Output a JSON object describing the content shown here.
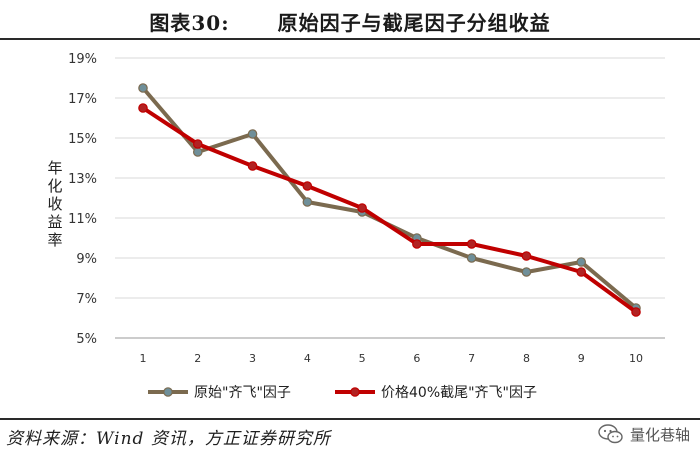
{
  "figure": {
    "label": "图表30:",
    "title": "原始因子与截尾因子分组收益"
  },
  "source": "资料来源：Wind 资讯，方正证券研究所",
  "watermark": "量化巷轴",
  "chart_data": {
    "type": "line",
    "ylabel": "年化收益率",
    "xlabel": "",
    "x": [
      1,
      2,
      3,
      4,
      5,
      6,
      7,
      8,
      9,
      10
    ],
    "ylim": [
      5,
      19
    ],
    "yticks": [
      5,
      7,
      9,
      11,
      13,
      15,
      17,
      19
    ],
    "ytick_labels": [
      "5%",
      "7%",
      "9%",
      "11%",
      "13%",
      "15%",
      "17%",
      "19%"
    ],
    "grid": "horizontal",
    "legend": "bottom",
    "series": [
      {
        "name": "原始\"齐飞\"因子",
        "values": [
          17.5,
          14.3,
          15.2,
          11.8,
          11.3,
          10.0,
          9.0,
          8.3,
          8.8,
          6.5
        ],
        "line_color": "#7b6a4f",
        "marker_color": "#6f8f99"
      },
      {
        "name": "价格40%截尾\"齐飞\"因子",
        "values": [
          16.5,
          14.7,
          13.6,
          12.6,
          11.5,
          9.7,
          9.7,
          9.1,
          8.3,
          6.3
        ],
        "line_color": "#c00000",
        "marker_color": "#b22222"
      }
    ]
  }
}
